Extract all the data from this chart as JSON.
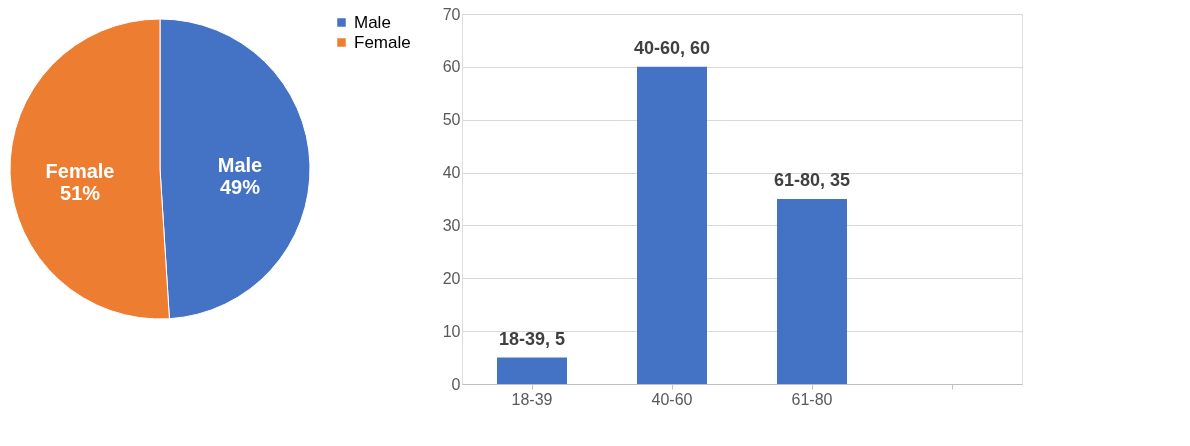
{
  "chart_data": [
    {
      "type": "pie",
      "categories": [
        "Male",
        "Female"
      ],
      "values": [
        49,
        51
      ],
      "colors": [
        "#4472c4",
        "#ed7d31"
      ],
      "value_labels": [
        "49%",
        "51%"
      ],
      "legend": "right"
    },
    {
      "type": "bar",
      "categories": [
        "18-39",
        "40-60",
        "61-80",
        null
      ],
      "values": [
        5,
        60,
        35,
        null
      ],
      "color": "#4472c4",
      "value_labels": [
        "18-39, 5",
        "40-60, 60",
        "61-80, 35",
        null
      ],
      "ylim": [
        0,
        70
      ],
      "yticks": [
        0,
        10,
        20,
        30,
        40,
        50,
        60,
        70
      ],
      "grid": "y"
    }
  ]
}
